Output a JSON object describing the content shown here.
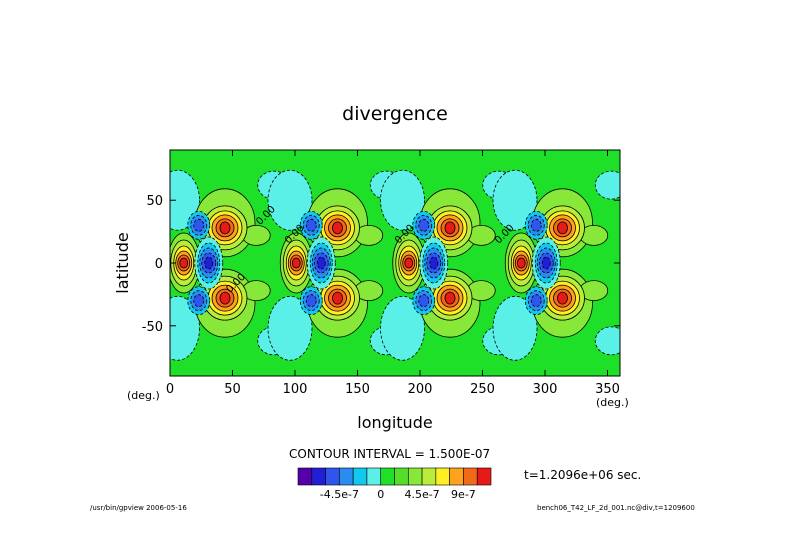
{
  "chart_data": {
    "type": "contour",
    "title": "divergence",
    "xlabel": "longitude",
    "ylabel": "latitude",
    "x_unit": "(deg.)",
    "y_unit": "(deg.)",
    "xlim": [
      0,
      360
    ],
    "ylim": [
      -90,
      90
    ],
    "x_ticks": [
      0,
      50,
      100,
      150,
      200,
      250,
      300,
      350
    ],
    "y_ticks": [
      50,
      0,
      -50
    ],
    "contour_interval_text": "CONTOUR INTERVAL = 1.500E-07",
    "time_text": "t=1.2096e+06 sec.",
    "colorbar": {
      "levels": 12,
      "colors": [
        "#5500aa",
        "#1f1fd8",
        "#2f55ee",
        "#2a8cf0",
        "#12c8ee",
        "#5af0e8",
        "#1ee028",
        "#55dd2a",
        "#88e83a",
        "#b8ee3a",
        "#ffee22",
        "#ffa21c",
        "#f06a1a",
        "#e81a18"
      ],
      "tick_labels": [
        "-4.5e-7",
        "0",
        "4.5e-7",
        "9e-7"
      ]
    },
    "contour_labels": [
      "0.00",
      "0.00",
      "0.00",
      "0.00",
      "0.00"
    ],
    "footer_left": "/usr/bin/gpview  2006-05-16",
    "footer_right": "bench06_T42_LF_2d_001.nc@div,t=1209600"
  }
}
